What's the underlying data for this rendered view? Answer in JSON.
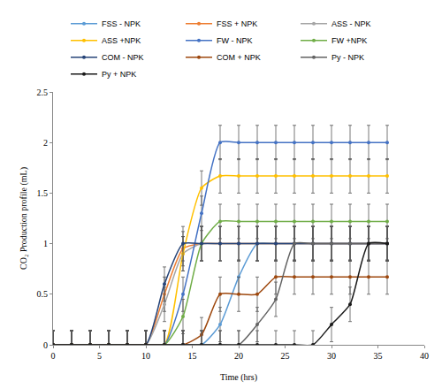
{
  "chart_data": {
    "type": "line",
    "x_label": "Time (hrs)",
    "y_label": "CO₂ Production profile (mL)",
    "xlim": [
      0,
      40
    ],
    "xticks": [
      0,
      5,
      10,
      15,
      20,
      25,
      30,
      35,
      40
    ],
    "ylim": [
      0,
      2.5
    ],
    "yticks": [
      0,
      0.5,
      1,
      1.5,
      2,
      2.5
    ],
    "grid": false,
    "legend": "top",
    "marker": "circle",
    "line_style": "solid",
    "x": [
      0,
      2,
      4,
      6,
      8,
      10,
      12,
      14,
      16,
      18,
      20,
      22,
      24,
      26,
      28,
      30,
      32,
      34,
      36
    ],
    "series": [
      {
        "name": "FSS - NPK",
        "color": "#5B9BD5",
        "values": [
          0,
          0,
          0,
          0,
          0,
          0,
          0,
          0,
          0,
          0.2,
          0.67,
          1,
          1,
          1,
          1,
          1,
          1,
          1,
          1
        ],
        "errors": [
          0.14,
          0.14,
          0.14,
          0.14,
          0.14,
          0.14,
          0.14,
          0.14,
          0.14,
          0.17,
          0.17,
          0.17,
          0.17,
          0.17,
          0.17,
          0.17,
          0.17,
          0.17,
          0.17
        ]
      },
      {
        "name": "FSS + NPK",
        "color": "#ED7D31",
        "values": [
          0,
          0,
          0,
          0,
          0,
          0,
          0.5,
          0.95,
          1,
          1,
          1,
          1,
          1,
          1,
          1,
          1,
          1,
          1,
          1
        ],
        "errors": [
          0.14,
          0.14,
          0.14,
          0.14,
          0.14,
          0.14,
          0.17,
          0.17,
          0.17,
          0.17,
          0.17,
          0.17,
          0.17,
          0.17,
          0.17,
          0.17,
          0.17,
          0.17,
          0.17
        ]
      },
      {
        "name": "ASS - NPK",
        "color": "#A5A5A5",
        "values": [
          0,
          0,
          0,
          0,
          0,
          0,
          0.4,
          0.9,
          1,
          1,
          1,
          1,
          1,
          1,
          1,
          1,
          1,
          1,
          1
        ],
        "errors": [
          0.14,
          0.14,
          0.14,
          0.14,
          0.14,
          0.14,
          0.17,
          0.17,
          0.17,
          0.17,
          0.17,
          0.17,
          0.17,
          0.17,
          0.17,
          0.17,
          0.17,
          0.17,
          0.17
        ]
      },
      {
        "name": "ASS +NPK",
        "color": "#FFC000",
        "values": [
          0,
          0,
          0,
          0,
          0,
          0,
          0,
          0.9,
          1.55,
          1.67,
          1.67,
          1.67,
          1.67,
          1.67,
          1.67,
          1.67,
          1.67,
          1.67,
          1.67
        ],
        "errors": [
          0.14,
          0.14,
          0.14,
          0.14,
          0.14,
          0.14,
          0.14,
          0.17,
          0.17,
          0.17,
          0.17,
          0.17,
          0.17,
          0.17,
          0.17,
          0.17,
          0.17,
          0.17,
          0.17
        ]
      },
      {
        "name": "FW - NPK",
        "color": "#4472C4",
        "values": [
          0,
          0,
          0,
          0,
          0,
          0,
          0,
          0.5,
          1.3,
          2,
          2,
          2,
          2,
          2,
          2,
          2,
          2,
          2,
          2
        ],
        "errors": [
          0.14,
          0.14,
          0.14,
          0.14,
          0.14,
          0.14,
          0.14,
          0.17,
          0.17,
          0.17,
          0.17,
          0.17,
          0.17,
          0.17,
          0.17,
          0.17,
          0.17,
          0.17,
          0.17
        ]
      },
      {
        "name": "FW +NPK",
        "color": "#70AD47",
        "values": [
          0,
          0,
          0,
          0,
          0,
          0,
          0,
          0.28,
          1,
          1.22,
          1.22,
          1.22,
          1.22,
          1.22,
          1.22,
          1.22,
          1.22,
          1.22,
          1.22
        ],
        "errors": [
          0.14,
          0.14,
          0.14,
          0.14,
          0.14,
          0.14,
          0.14,
          0.17,
          0.17,
          0.17,
          0.17,
          0.17,
          0.17,
          0.17,
          0.17,
          0.17,
          0.17,
          0.17,
          0.17
        ]
      },
      {
        "name": "COM - NPK",
        "color": "#264478",
        "values": [
          0,
          0,
          0,
          0,
          0,
          0,
          0.6,
          1,
          1,
          1,
          1,
          1,
          1,
          1,
          1,
          1,
          1,
          1,
          1
        ],
        "errors": [
          0.14,
          0.14,
          0.14,
          0.14,
          0.14,
          0.14,
          0.17,
          0.17,
          0.17,
          0.17,
          0.17,
          0.17,
          0.17,
          0.17,
          0.17,
          0.17,
          0.17,
          0.17,
          0.17
        ]
      },
      {
        "name": "COM + NPK",
        "color": "#9E480E",
        "values": [
          0,
          0,
          0,
          0,
          0,
          0,
          0,
          0,
          0.1,
          0.5,
          0.5,
          0.5,
          0.67,
          0.67,
          0.67,
          0.67,
          0.67,
          0.67,
          0.67
        ],
        "errors": [
          0.14,
          0.14,
          0.14,
          0.14,
          0.14,
          0.14,
          0.14,
          0.14,
          0.17,
          0.17,
          0.17,
          0.17,
          0.17,
          0.17,
          0.17,
          0.17,
          0.17,
          0.17,
          0.17
        ]
      },
      {
        "name": "Py - NPK",
        "color": "#636363",
        "values": [
          0,
          0,
          0,
          0,
          0,
          0,
          0,
          0,
          0,
          0,
          0,
          0.2,
          0.45,
          1,
          1,
          1,
          1,
          1,
          1
        ],
        "errors": [
          0.14,
          0.14,
          0.14,
          0.14,
          0.14,
          0.14,
          0.14,
          0.14,
          0.14,
          0.14,
          0.14,
          0.17,
          0.17,
          0.17,
          0.17,
          0.17,
          0.17,
          0.17,
          0.17
        ]
      },
      {
        "name": "Py + NPK",
        "color": "#1A1A1A",
        "values": [
          0,
          0,
          0,
          0,
          0,
          0,
          0,
          0,
          0,
          0,
          0,
          0,
          0,
          0,
          0,
          0.2,
          0.4,
          1,
          1
        ],
        "errors": [
          0.14,
          0.14,
          0.14,
          0.14,
          0.14,
          0.14,
          0.14,
          0.14,
          0.14,
          0.14,
          0.14,
          0.14,
          0.14,
          0.14,
          0.14,
          0.17,
          0.17,
          0.17,
          0.17
        ]
      }
    ]
  }
}
